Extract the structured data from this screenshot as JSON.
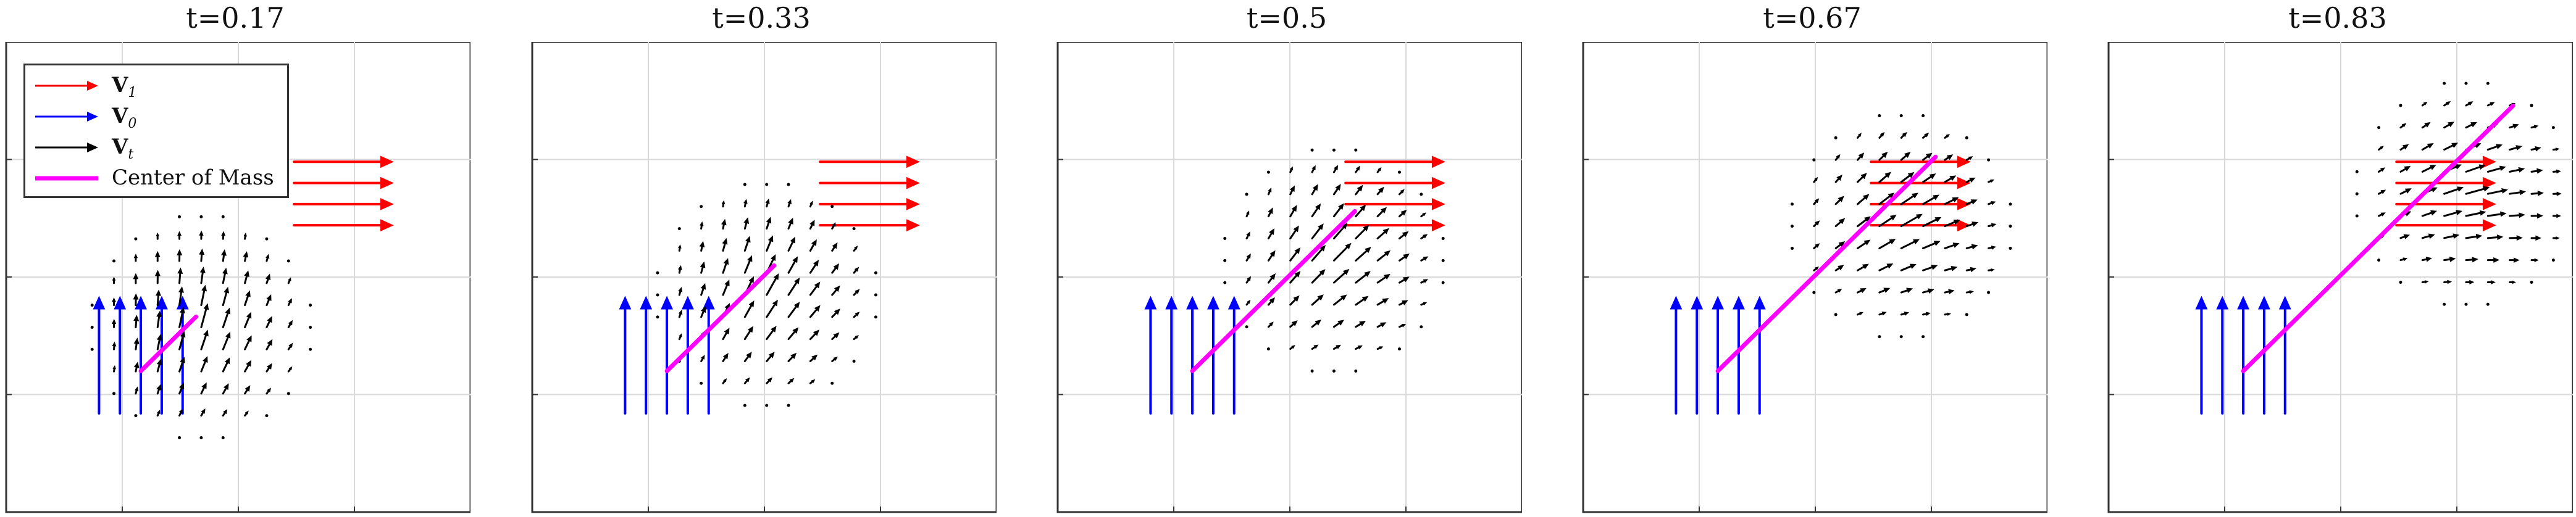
{
  "colors": {
    "v1": "#ff0000",
    "v0": "#0000ff",
    "vt": "#000000",
    "center": "#ff00ff",
    "grid": "#d9d9d9",
    "frame": "#333333"
  },
  "legend": {
    "v1_label": "V",
    "v1_sub": "1",
    "v0_label": "V",
    "v0_sub": "0",
    "vt_label": "V",
    "vt_sub": "t",
    "center_label": "Center of Mass"
  },
  "chart_data": [
    {
      "type": "quiver",
      "title": "t=0.17",
      "t": 0.17,
      "xlim": [
        0,
        1
      ],
      "ylim": [
        0,
        1
      ],
      "grid": true,
      "legend": "top-left",
      "series": [
        {
          "name": "V1"
        },
        {
          "name": "V0"
        },
        {
          "name": "Vt"
        },
        {
          "name": "Center of Mass"
        }
      ]
    },
    {
      "type": "quiver",
      "title": "t=0.33",
      "t": 0.33,
      "xlim": [
        0,
        1
      ],
      "ylim": [
        0,
        1
      ],
      "grid": true
    },
    {
      "type": "quiver",
      "title": "t=0.5",
      "t": 0.5,
      "xlim": [
        0,
        1
      ],
      "ylim": [
        0,
        1
      ],
      "grid": true
    },
    {
      "type": "quiver",
      "title": "t=0.67",
      "t": 0.67,
      "xlim": [
        0,
        1
      ],
      "ylim": [
        0,
        1
      ],
      "grid": true
    },
    {
      "type": "quiver",
      "title": "t=0.83",
      "t": 0.83,
      "xlim": [
        0,
        1
      ],
      "ylim": [
        0,
        1
      ],
      "grid": true
    }
  ]
}
